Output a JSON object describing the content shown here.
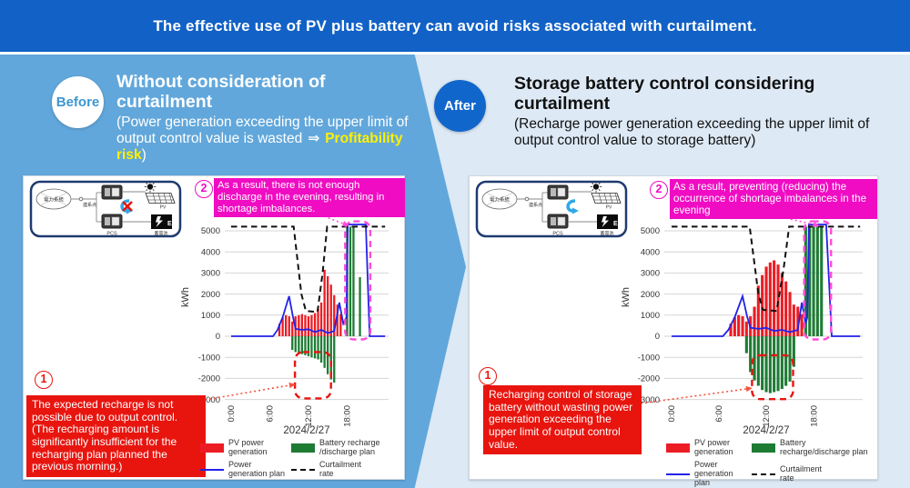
{
  "banner": {
    "title": "The effective use of PV plus battery can avoid risks associated with curtailment."
  },
  "colors": {
    "banner_bg": "#1161C6",
    "left_panel": "#61A7DB",
    "right_panel": "#DDE9F5",
    "badge_blue": "#1166CB",
    "magenta": "#F00CC3",
    "red_box": "#E8150F",
    "risk_yellow": "#FFF100",
    "bar_red": "#EC1C24",
    "bar_green": "#1E7B34",
    "line_blue": "#2222E8",
    "dash_black": "#111111"
  },
  "panels": {
    "before": {
      "badge": "Before",
      "title": "Without consideration of curtailment",
      "sub_prefix": "(Power generation exceeding the upper limit of output control value is wasted",
      "sub_arrow": "⇒",
      "sub_risk": "Profitability risk",
      "sub_suffix": ")",
      "note2_num": "2",
      "note2": "As a result, there is not enough discharge in the evening, resulting in shortage imbalances.",
      "note1_num": "1",
      "note1": "The expected recharge is not possible due to output control. (The recharging amount is significantly insufficient for the recharging plan planned the previous morning.)"
    },
    "after": {
      "badge": "After",
      "title": "Storage battery control considering curtailment",
      "subtitle": "(Recharge power generation exceeding the upper limit of output control value to storage battery)",
      "note2_num": "2",
      "note2": "As a result, preventing (reducing) the occurrence of shortage imbalances in the evening",
      "note1_num": "1",
      "note1": "Recharging control of storage battery without wasting power generation exceeding the upper limit of output control value."
    }
  },
  "diagram_labels": {
    "power_grid": "電力系統",
    "connection_point": "連系点",
    "pcs": "PCS",
    "pv": "PV",
    "battery": "蓄電池"
  },
  "chart_data": [
    {
      "id": "before-chart",
      "type": "bar",
      "ylabel": "kWh",
      "ylim": [
        -3000,
        5000
      ],
      "ytick_step": 1000,
      "date_label": "2024/2/27",
      "xticks": [
        {
          "t": 0,
          "label": "0:00"
        },
        {
          "t": 6,
          "label": "6:00"
        },
        {
          "t": 12,
          "label": "12:00"
        },
        {
          "t": 18,
          "label": "18:00"
        }
      ],
      "bar_width_hours": 0.5,
      "series": [
        {
          "name": "PV power generation",
          "type": "bar",
          "color": "#EC1C24",
          "points": [
            [
              7.5,
              600
            ],
            [
              8,
              900
            ],
            [
              8.5,
              1000
            ],
            [
              9,
              950
            ],
            [
              9.5,
              700
            ],
            [
              10,
              950
            ],
            [
              10.5,
              1000
            ],
            [
              11,
              1050
            ],
            [
              11.5,
              1000
            ],
            [
              12,
              950
            ],
            [
              12.5,
              1000
            ],
            [
              13,
              1100
            ],
            [
              13.5,
              1300
            ],
            [
              14,
              1600
            ],
            [
              14.5,
              3150
            ],
            [
              15,
              2850
            ],
            [
              15.5,
              2450
            ],
            [
              16,
              1950
            ],
            [
              16.5,
              1500
            ],
            [
              17,
              1050
            ]
          ]
        },
        {
          "name": "Battery recharge/discharge plan",
          "type": "bar",
          "color": "#1E7B34",
          "points": [
            [
              9.5,
              -650
            ],
            [
              10,
              -750
            ],
            [
              10.5,
              -800
            ],
            [
              11,
              -850
            ],
            [
              11.5,
              -900
            ],
            [
              12,
              -950
            ],
            [
              12.5,
              -1000
            ],
            [
              13,
              -1050
            ],
            [
              13.5,
              -1100
            ],
            [
              14,
              -1250
            ],
            [
              14.5,
              -1500
            ],
            [
              15,
              -1800
            ],
            [
              15.5,
              -2050
            ],
            [
              16,
              -2200
            ],
            [
              18,
              5200
            ],
            [
              18.5,
              5200
            ],
            [
              19,
              5200
            ],
            [
              20,
              2800
            ]
          ]
        },
        {
          "name": "Power generation plan",
          "type": "line",
          "color": "#2222E8",
          "points": [
            [
              0,
              0
            ],
            [
              6.5,
              0
            ],
            [
              7.2,
              300
            ],
            [
              8,
              900
            ],
            [
              9,
              1900
            ],
            [
              9.6,
              900
            ],
            [
              10,
              350
            ],
            [
              11,
              300
            ],
            [
              12,
              330
            ],
            [
              13,
              200
            ],
            [
              14,
              300
            ],
            [
              15,
              150
            ],
            [
              16,
              250
            ],
            [
              16.8,
              1600
            ],
            [
              17.4,
              600
            ],
            [
              17.9,
              900
            ],
            [
              18.1,
              5300
            ],
            [
              20.9,
              5300
            ],
            [
              21.5,
              0
            ],
            [
              23.9,
              0
            ]
          ]
        },
        {
          "name": "Curtailment rate",
          "type": "dashed-line",
          "color": "#111111",
          "points": [
            [
              0,
              5200
            ],
            [
              9.7,
              5200
            ],
            [
              10.9,
              2000
            ],
            [
              11.6,
              1200
            ],
            [
              13.4,
              1150
            ],
            [
              14.2,
              3000
            ],
            [
              14.9,
              5200
            ],
            [
              23.9,
              5200
            ]
          ]
        }
      ],
      "highlights": [
        {
          "name": "recharge-shortfall",
          "color": "#E8150F",
          "t0": 9.9,
          "t1": 15.5,
          "v0": -750,
          "v1": -2950
        },
        {
          "name": "evening-discharge",
          "color": "#FF4DD8",
          "t0": 17.7,
          "t1": 21.6,
          "v0": -150,
          "v1": 5450
        }
      ],
      "legend": [
        {
          "swatch": "bar",
          "color": "#EC1C24",
          "lines": [
            "PV power",
            "generation"
          ]
        },
        {
          "swatch": "bar",
          "color": "#1E7B34",
          "lines": [
            "Battery recharge",
            "/discharge plan"
          ]
        },
        {
          "swatch": "line",
          "color": "#2222E8",
          "lines": [
            "Power",
            "generation plan"
          ]
        },
        {
          "swatch": "dash",
          "color": "#111111",
          "lines": [
            "Curtailment",
            "rate"
          ]
        }
      ]
    },
    {
      "id": "after-chart",
      "type": "bar",
      "ylabel": "kWh",
      "ylim": [
        -3000,
        5000
      ],
      "ytick_step": 1000,
      "date_label": "2024/2/27",
      "xticks": [
        {
          "t": 0,
          "label": "0:00"
        },
        {
          "t": 6,
          "label": "6:00"
        },
        {
          "t": 12,
          "label": "12:00"
        },
        {
          "t": 18,
          "label": "18:00"
        }
      ],
      "bar_width_hours": 0.5,
      "series": [
        {
          "name": "PV power generation",
          "type": "bar",
          "color": "#EC1C24",
          "points": [
            [
              7.5,
              600
            ],
            [
              8,
              900
            ],
            [
              8.5,
              1000
            ],
            [
              9,
              950
            ],
            [
              9.5,
              700
            ],
            [
              10,
              950
            ],
            [
              10.5,
              1400
            ],
            [
              11,
              2400
            ],
            [
              11.5,
              2900
            ],
            [
              12,
              3300
            ],
            [
              12.5,
              3500
            ],
            [
              13,
              3600
            ],
            [
              13.5,
              3400
            ],
            [
              14,
              3000
            ],
            [
              14.5,
              2600
            ],
            [
              15,
              2100
            ],
            [
              15.5,
              1500
            ],
            [
              16,
              1400
            ],
            [
              16.5,
              1050
            ]
          ]
        },
        {
          "name": "Battery recharge/discharge plan",
          "type": "bar",
          "color": "#1E7B34",
          "points": [
            [
              9.5,
              -800
            ],
            [
              10,
              -1700
            ],
            [
              10.5,
              -2100
            ],
            [
              11,
              -2350
            ],
            [
              11.5,
              -2550
            ],
            [
              12,
              -2650
            ],
            [
              12.5,
              -2700
            ],
            [
              13,
              -2650
            ],
            [
              13.5,
              -2600
            ],
            [
              14,
              -2500
            ],
            [
              14.5,
              -2350
            ],
            [
              15,
              -2150
            ],
            [
              15.5,
              -1450
            ],
            [
              17,
              5200
            ],
            [
              17.5,
              5200
            ],
            [
              18,
              5200
            ],
            [
              18.5,
              5200
            ],
            [
              19,
              5200
            ]
          ]
        },
        {
          "name": "Power generation plan",
          "type": "line",
          "color": "#2222E8",
          "points": [
            [
              0,
              0
            ],
            [
              6.5,
              0
            ],
            [
              7.2,
              300
            ],
            [
              8,
              900
            ],
            [
              9,
              1900
            ],
            [
              9.6,
              900
            ],
            [
              10,
              400
            ],
            [
              11,
              350
            ],
            [
              12,
              400
            ],
            [
              13,
              250
            ],
            [
              14,
              300
            ],
            [
              15,
              200
            ],
            [
              16,
              300
            ],
            [
              16.5,
              1600
            ],
            [
              17,
              600
            ],
            [
              17.2,
              900
            ],
            [
              17.4,
              5300
            ],
            [
              19.6,
              5300
            ],
            [
              20.3,
              0
            ],
            [
              23.9,
              0
            ]
          ]
        },
        {
          "name": "Curtailment rate",
          "type": "dashed-line",
          "color": "#111111",
          "points": [
            [
              0,
              5200
            ],
            [
              9.9,
              5200
            ],
            [
              11,
              2000
            ],
            [
              11.6,
              1250
            ],
            [
              13.3,
              1200
            ],
            [
              14.2,
              3200
            ],
            [
              14.9,
              5200
            ],
            [
              23.9,
              5200
            ]
          ]
        }
      ],
      "highlights": [
        {
          "name": "recharge-control",
          "color": "#E8150F",
          "t0": 10.2,
          "t1": 15.4,
          "v0": -900,
          "v1": -2980
        },
        {
          "name": "evening-discharge",
          "color": "#FF4DD8",
          "t0": 16.8,
          "t1": 20.2,
          "v0": -150,
          "v1": 5450
        }
      ],
      "legend": [
        {
          "swatch": "bar",
          "color": "#EC1C24",
          "lines": [
            "PV power",
            "generation"
          ]
        },
        {
          "swatch": "bar",
          "color": "#1E7B34",
          "lines": [
            "Battery",
            "recharge/discharge plan"
          ]
        },
        {
          "swatch": "line",
          "color": "#2222E8",
          "lines": [
            "Power",
            "generation plan"
          ]
        },
        {
          "swatch": "dash",
          "color": "#111111",
          "lines": [
            "Curtailment",
            "rate"
          ]
        }
      ]
    }
  ]
}
